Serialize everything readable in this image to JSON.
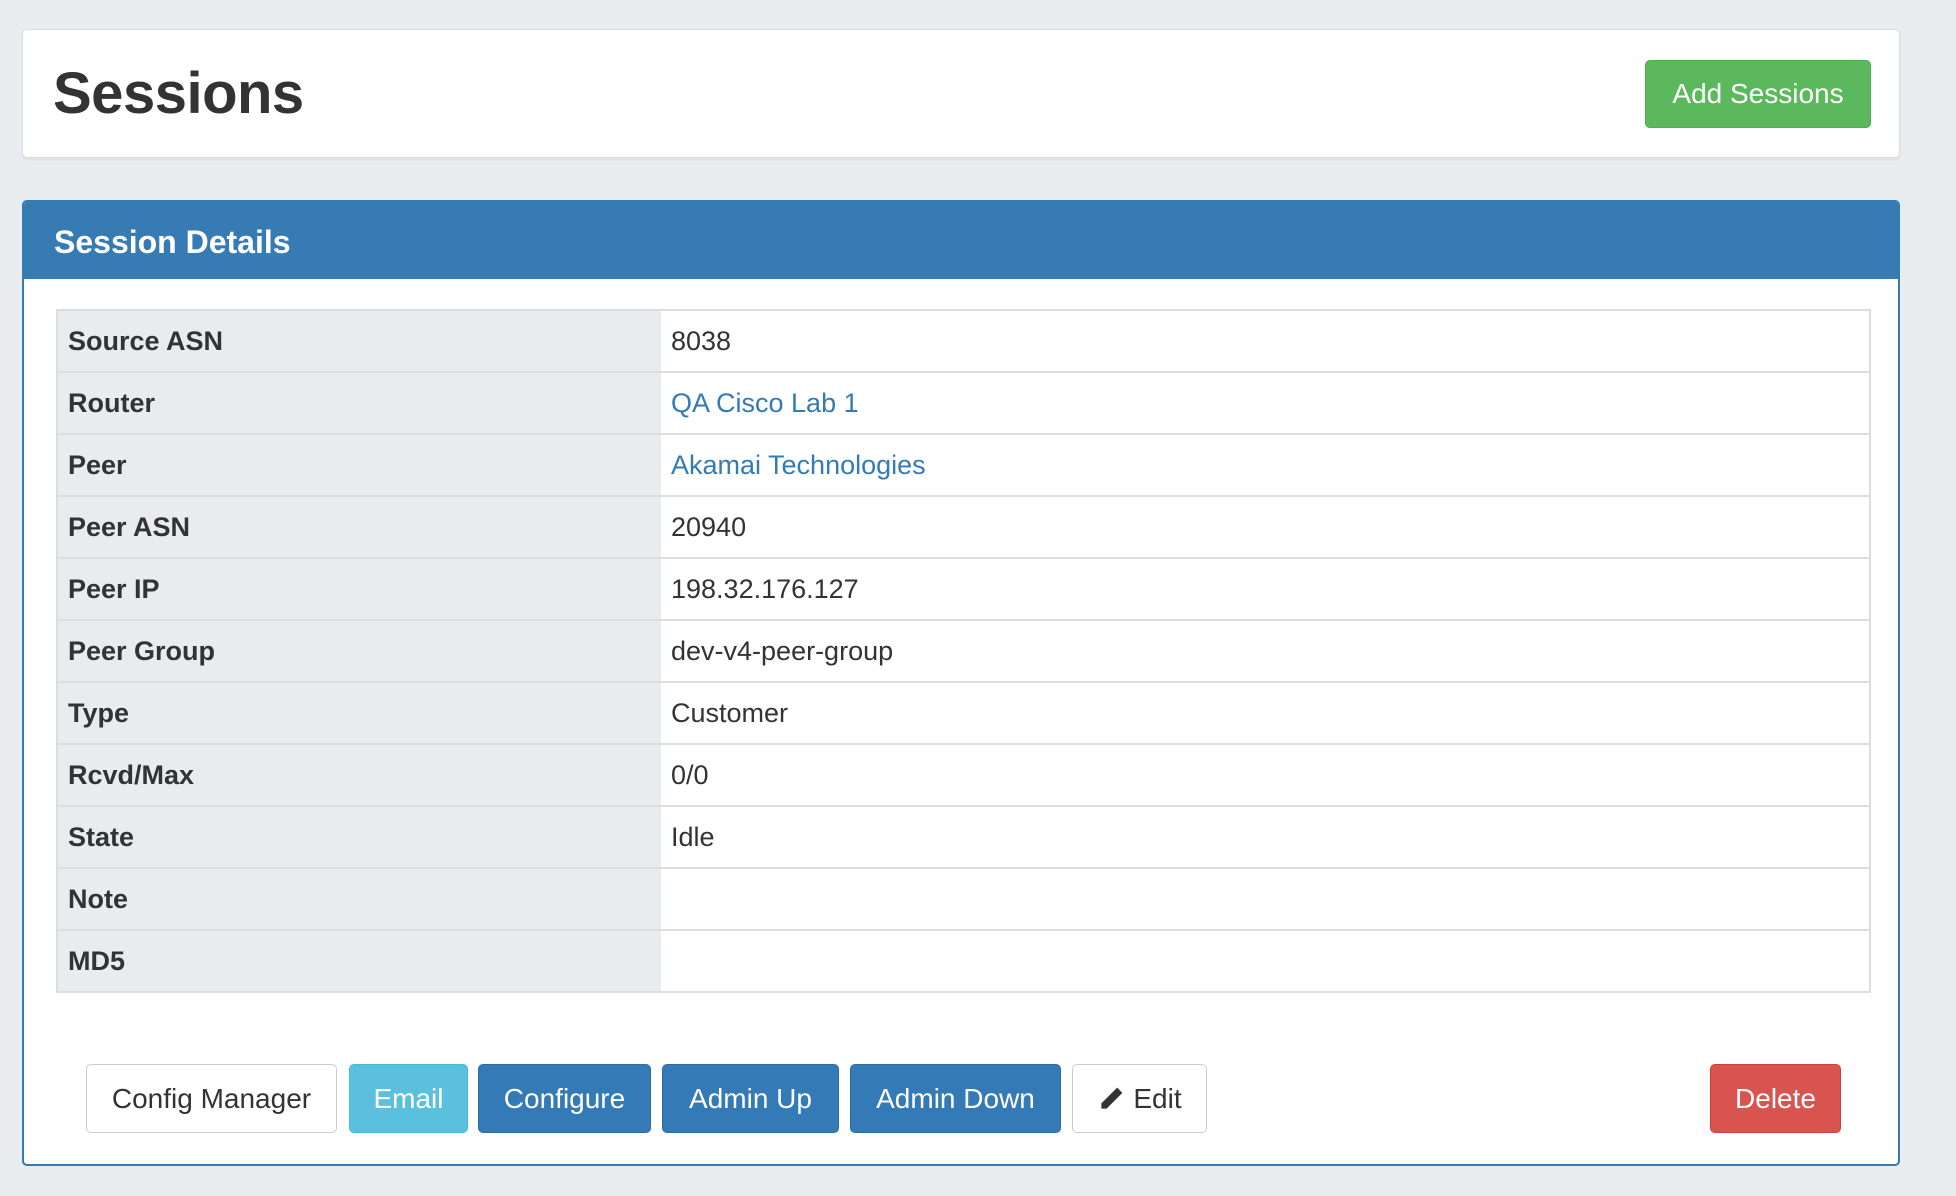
{
  "header": {
    "title": "Sessions",
    "add_button": "Add Sessions"
  },
  "panel": {
    "title": "Session Details"
  },
  "details": [
    {
      "label": "Source ASN",
      "value": "8038",
      "link": false
    },
    {
      "label": "Router",
      "value": "QA Cisco Lab 1",
      "link": true
    },
    {
      "label": "Peer",
      "value": "Akamai Technologies",
      "link": true
    },
    {
      "label": "Peer ASN",
      "value": "20940",
      "link": false
    },
    {
      "label": "Peer IP",
      "value": "198.32.176.127",
      "link": false
    },
    {
      "label": "Peer Group",
      "value": "dev-v4-peer-group",
      "link": false
    },
    {
      "label": "Type",
      "value": "Customer",
      "link": false
    },
    {
      "label": "Rcvd/Max",
      "value": "0/0",
      "link": false
    },
    {
      "label": "State",
      "value": "Idle",
      "link": false
    },
    {
      "label": "Note",
      "value": "",
      "link": false
    },
    {
      "label": "MD5",
      "value": "",
      "link": false
    }
  ],
  "actions": {
    "config_manager": "Config Manager",
    "email": "Email",
    "configure": "Configure",
    "admin_up": "Admin Up",
    "admin_down": "Admin Down",
    "edit": "Edit",
    "edit_icon": "pencil-icon",
    "delete": "Delete"
  },
  "colors": {
    "primary": "#337ab7",
    "success": "#5cb85c",
    "info": "#5bc0de",
    "danger": "#d9534f"
  }
}
